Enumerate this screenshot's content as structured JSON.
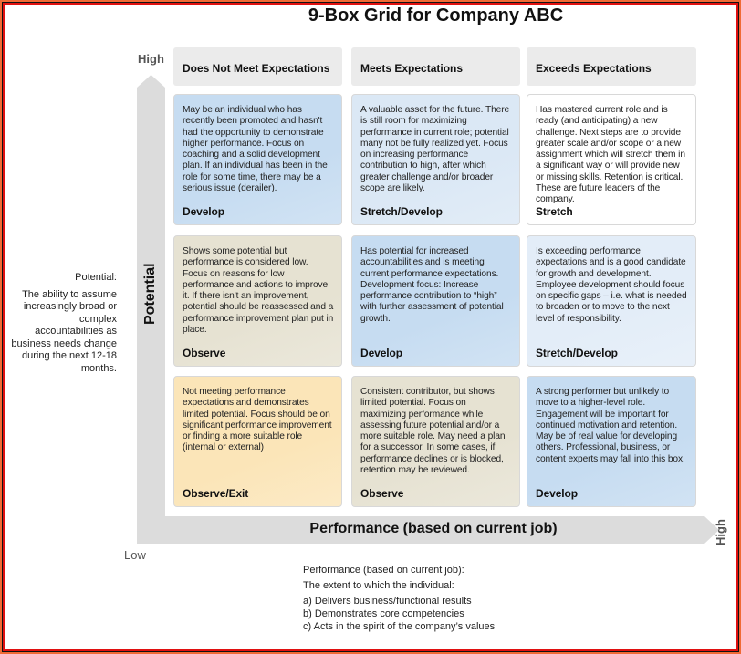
{
  "title": "9-Box Grid for Company ABC",
  "axes": {
    "y_high": "High",
    "low": "Low",
    "x_high": "High",
    "y_label": "Potential",
    "x_label": "Performance (based on current job)"
  },
  "potential_desc": {
    "title": "Potential:",
    "text": "The ability to assume increasingly broad or complex accountabilities as business needs change during the next 12-18 months."
  },
  "columns": [
    "Does Not Meet Expectations",
    "Meets Expectations",
    "Exceeds Expectations"
  ],
  "cells": [
    {
      "text": "May be an individual who has recently been promoted and hasn't had the opportunity to demonstrate higher performance. Focus on coaching and a solid development plan. If an individual has been in the role for some time, there may be a serious issue (derailer).",
      "label": "Develop",
      "color": "#c6dcf1"
    },
    {
      "text": "A valuable asset for the future. There is still room for maximizing performance in current role; potential many not be fully realized yet. Focus on increasing performance contribution to high, after which greater challenge and/or broader scope are likely.",
      "label": "Stretch/Develop",
      "color": "#dbe8f5"
    },
    {
      "text": "Has mastered current role and is ready (and anticipating) a new challenge. Next steps are to provide greater scale and/or scope or a new assignment which will stretch them in a significant way or will provide new or missing skills. Retention is critical. These are future leaders of the company.",
      "label": "Stretch",
      "color": "#ffffff"
    },
    {
      "text": "Shows some potential but performance is considered low. Focus on reasons for low performance and actions to improve it. If there isn't an improvement, potential should be reassessed and a performance improvement plan put in place.",
      "label": "Observe",
      "color": "#e6e2d2"
    },
    {
      "text": "Has potential for increased accountabilities and is meeting current performance expectations. Development focus: Increase performance contribution to “high” with further assessment of potential growth.",
      "label": "Develop",
      "color": "#c6dcf1"
    },
    {
      "text": "Is exceeding performance expectations and is a good candidate for growth and development. Employee development should focus on specific gaps – i.e. what is needed to broaden or to move to the next level of responsibility.",
      "label": "Stretch/Develop",
      "color": "#e3edf8"
    },
    {
      "text": "Not meeting performance expectations and demonstrates limited potential. Focus should be on significant performance improvement or finding a more suitable role (internal or external)",
      "label": "Observe/Exit",
      "color": "#fbe5b8"
    },
    {
      "text": "Consistent contributor, but shows limited potential. Focus on maximizing performance while assessing future potential and/or a more suitable role. May need a plan for a successor. In some cases, if performance declines or is blocked, retention may be reviewed.",
      "label": "Observe",
      "color": "#e6e2d2"
    },
    {
      "text": "A strong performer but unlikely to move to a higher-level role. Engagement will be important for continued motivation and retention. May be of real value for developing others. Professional, business, or content experts may fall into this box.",
      "label": "Develop",
      "color": "#c6dcf1"
    }
  ],
  "performance_desc": {
    "title": "Performance (based on current job):",
    "intro": "The extent to which the individual:",
    "items": [
      "a) Delivers business/functional results",
      "b) Demonstrates core competencies",
      "c) Acts in the spirit of the company’s values"
    ]
  }
}
